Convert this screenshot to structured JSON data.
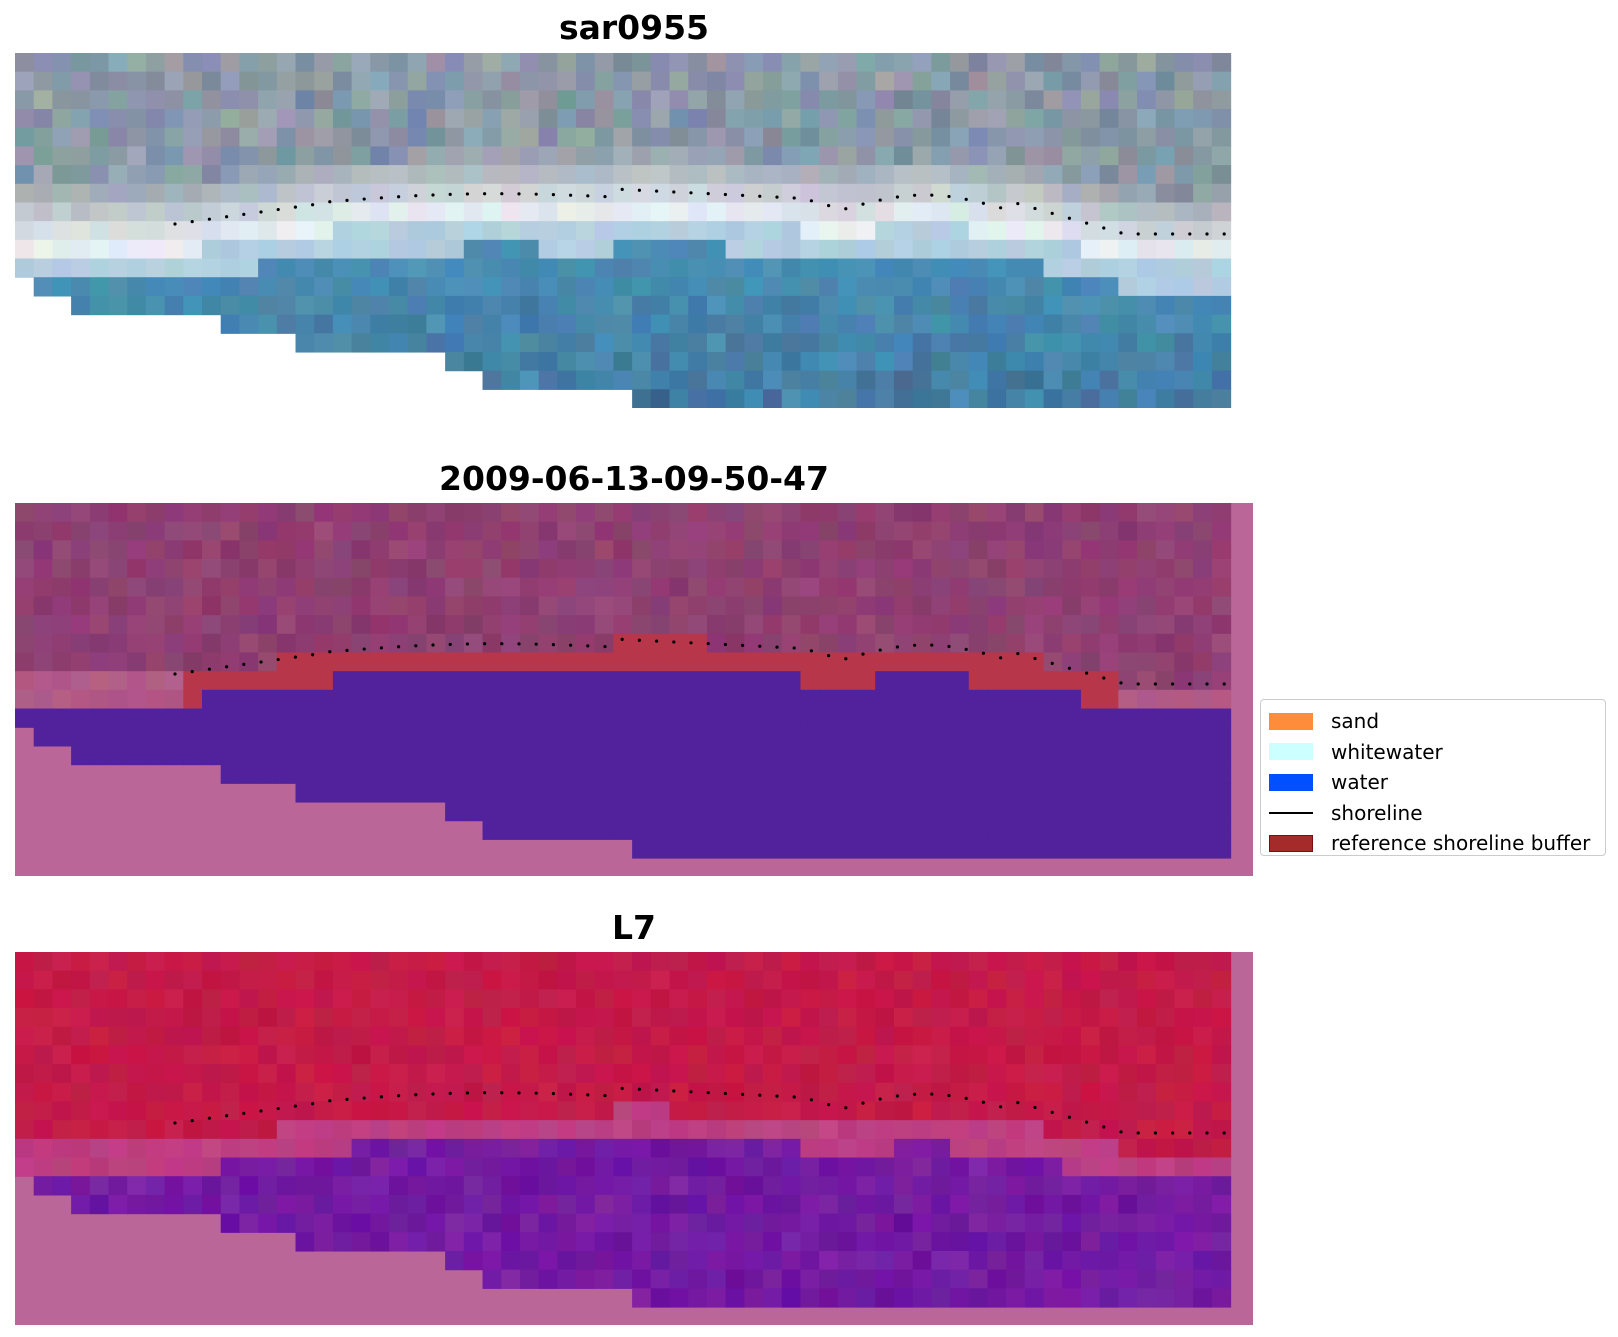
{
  "panels": [
    {
      "title": "sar0955"
    },
    {
      "title": "2009-06-13-09-50-47"
    },
    {
      "title": "L7"
    }
  ],
  "legend": {
    "items": [
      {
        "label": "sand",
        "kind": "patch",
        "color": "#ff8c3a"
      },
      {
        "label": "whitewater",
        "kind": "patch",
        "color": "#ccffff"
      },
      {
        "label": "water",
        "kind": "patch",
        "color": "#0050ff"
      },
      {
        "label": "shoreline",
        "kind": "line",
        "color": "#000000"
      },
      {
        "label": "reference shoreline buffer",
        "kind": "patch",
        "color": "#a52a2a",
        "edge": "#7a0f0f"
      }
    ]
  },
  "colors": {
    "rgb_land": "#9aa3ae",
    "rgb_bright": "#e8eef2",
    "rgb_water": "#4a8fb5",
    "cls_land": "#8a3b6e",
    "cls_buffer": "#b8364a",
    "cls_water": "#51229b",
    "cls_nodata": "#bb6699",
    "ndwi_land": "#c41a48",
    "ndwi_water": "#6a139f",
    "ndwi_nodata": "#bb6699"
  }
}
